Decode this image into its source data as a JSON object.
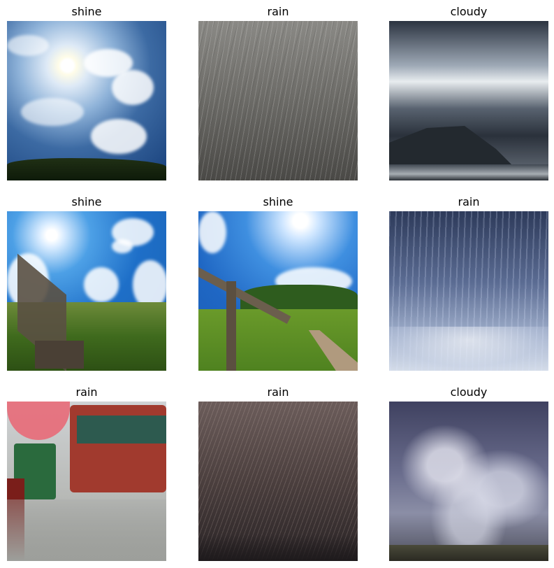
{
  "figure": {
    "panels": [
      {
        "label": "shine",
        "scene": "sunny sky with scattered clouds over treeline"
      },
      {
        "label": "rain",
        "scene": "grey sheets of falling rain"
      },
      {
        "label": "cloudy",
        "scene": "dark clouds above a lake and mountains"
      },
      {
        "label": "shine",
        "scene": "sun over green field with wooden bench"
      },
      {
        "label": "shine",
        "scene": "sunny field with wooden fence and path"
      },
      {
        "label": "rain",
        "scene": "blue rain drops splashing on surface"
      },
      {
        "label": "rain",
        "scene": "street with bus and umbrella in rain"
      },
      {
        "label": "rain",
        "scene": "dark diagonal rain streaks"
      },
      {
        "label": "cloudy",
        "scene": "stormy sky over grassland"
      }
    ]
  }
}
